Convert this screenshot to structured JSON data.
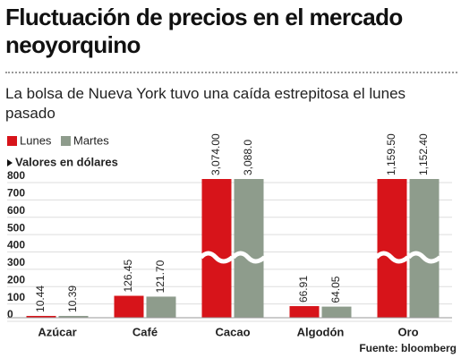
{
  "chart_data": {
    "type": "bar",
    "title": "Fluctuación de precios en el mercado neoyorquino",
    "subtitle": "La bolsa de Nueva York tuvo una caída estrepitosa el lunes pasado",
    "note": "Valores en dólares",
    "source": "Fuente: bloomberg",
    "categories": [
      "Azúcar",
      "Café",
      "Cacao",
      "Algodón",
      "Oro"
    ],
    "series": [
      {
        "name": "Lunes",
        "color": "#d7141a",
        "values": [
          10.44,
          126.45,
          3074.0,
          66.91,
          1159.5
        ],
        "value_labels": [
          "10.44",
          "126.45",
          "3,074.00",
          "66.91",
          "1,159.50"
        ]
      },
      {
        "name": "Martes",
        "color": "#8e9c8c",
        "values": [
          10.39,
          121.7,
          3088.0,
          64.05,
          1152.4
        ],
        "value_labels": [
          "10.39",
          "121.70",
          "3,088.0",
          "64.05",
          "1,152.40"
        ]
      }
    ],
    "ylim": [
      0,
      800
    ],
    "yticks": [
      0,
      100,
      200,
      300,
      400,
      500,
      600,
      700,
      800
    ],
    "grid": true
  }
}
